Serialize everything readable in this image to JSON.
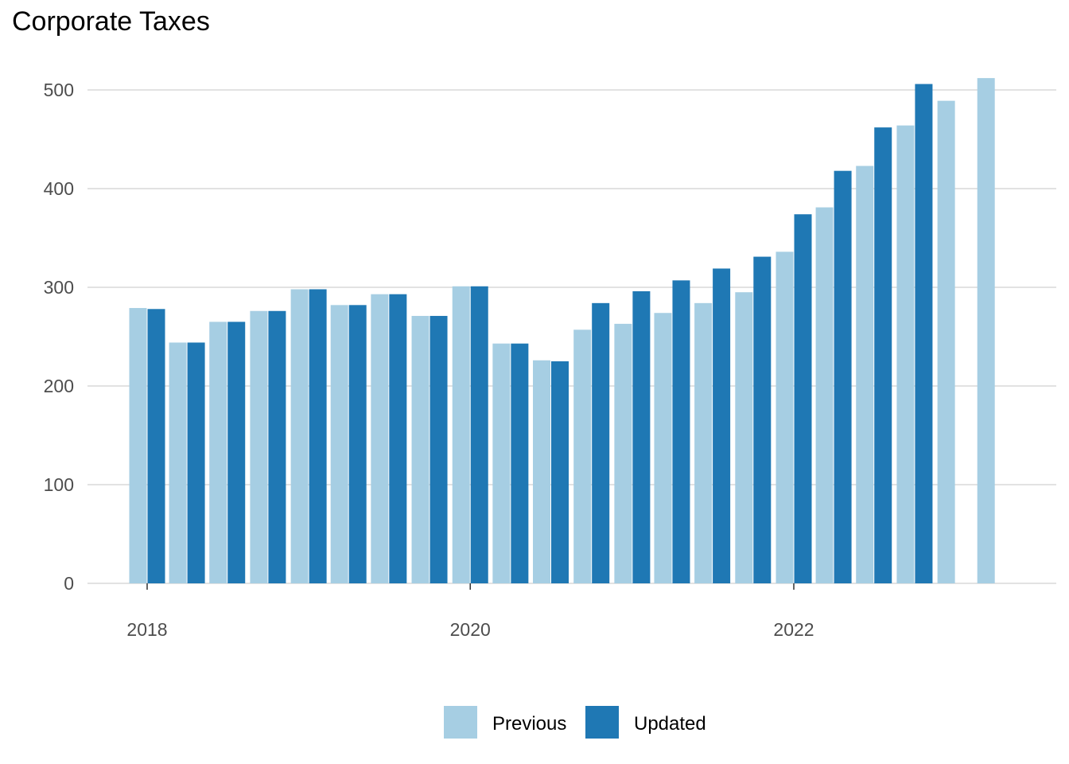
{
  "chart_data": {
    "type": "bar",
    "title": "Corporate Taxes",
    "xlabel": "",
    "ylabel": "",
    "ylim": [
      0,
      540
    ],
    "yticks": [
      0,
      100,
      200,
      300,
      400,
      500
    ],
    "ytick_labels": [
      "0",
      "100",
      "200",
      "300",
      "400",
      "500"
    ],
    "xticks": [
      "2018-01-01",
      "2020-01-01",
      "2022-01-01"
    ],
    "xtick_labels": [
      "2018",
      "2020",
      "2022"
    ],
    "categories": [
      "2018-01-01",
      "2018-04-01",
      "2018-07-01",
      "2018-10-01",
      "2019-01-01",
      "2019-04-01",
      "2019-07-01",
      "2019-10-01",
      "2020-01-01",
      "2020-04-01",
      "2020-07-01",
      "2020-10-01",
      "2021-01-01",
      "2021-04-01",
      "2021-07-01",
      "2021-10-01",
      "2022-01-01",
      "2022-04-01",
      "2022-07-01",
      "2022-10-01",
      "2023-01-01",
      "2023-04-01"
    ],
    "series": [
      {
        "name": "Previous",
        "color": "#a6cee3",
        "values": [
          279,
          244,
          265,
          276,
          298,
          282,
          293,
          271,
          301,
          243,
          226,
          257,
          263,
          274,
          284,
          295,
          336,
          381,
          423,
          464,
          489,
          512
        ]
      },
      {
        "name": "Updated",
        "color": "#1f78b4",
        "values": [
          278,
          244,
          265,
          276,
          298,
          282,
          293,
          271,
          301,
          243,
          225,
          284,
          296,
          307,
          319,
          331,
          374,
          418,
          462,
          506,
          null,
          null
        ]
      }
    ],
    "grid": true,
    "legend_position": "bottom"
  }
}
